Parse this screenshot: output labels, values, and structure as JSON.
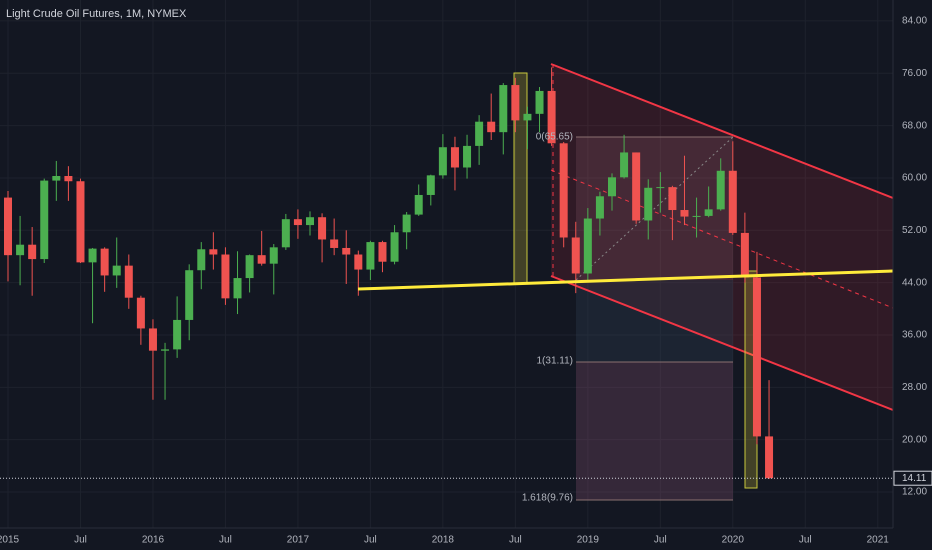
{
  "chart_data": {
    "type": "candlestick",
    "title": "Light Crude Oil Futures, 1M, NYMEX",
    "up_color": "#4caf50",
    "down_color": "#ef5350",
    "grid": true,
    "x": [
      "2015-01",
      "2015-02",
      "2015-03",
      "2015-04",
      "2015-05",
      "2015-06",
      "2015-07",
      "2015-08",
      "2015-09",
      "2015-10",
      "2015-11",
      "2015-12",
      "2016-01",
      "2016-02",
      "2016-03",
      "2016-04",
      "2016-05",
      "2016-06",
      "2016-07",
      "2016-08",
      "2016-09",
      "2016-10",
      "2016-11",
      "2016-12",
      "2017-01",
      "2017-02",
      "2017-03",
      "2017-04",
      "2017-05",
      "2017-06",
      "2017-07",
      "2017-08",
      "2017-09",
      "2017-10",
      "2017-11",
      "2017-12",
      "2018-01",
      "2018-02",
      "2018-03",
      "2018-04",
      "2018-05",
      "2018-06",
      "2018-07",
      "2018-08",
      "2018-09",
      "2018-10",
      "2018-11",
      "2018-12",
      "2019-01",
      "2019-02",
      "2019-03",
      "2019-04",
      "2019-05",
      "2019-06",
      "2019-07",
      "2019-08",
      "2019-09",
      "2019-10",
      "2019-11",
      "2019-12",
      "2020-01",
      "2020-02",
      "2020-03",
      "2020-04"
    ],
    "open": [
      57.0,
      48.2,
      49.8,
      47.6,
      59.6,
      60.3,
      59.5,
      47.1,
      49.2,
      45.1,
      46.6,
      41.7,
      37.0,
      33.6,
      33.8,
      38.3,
      45.9,
      49.1,
      48.3,
      41.6,
      44.7,
      48.2,
      46.9,
      49.4,
      53.7,
      52.8,
      54.0,
      50.6,
      49.3,
      48.3,
      46.0,
      50.2,
      47.2,
      51.7,
      54.4,
      57.4,
      60.4,
      64.7,
      61.6,
      64.9,
      68.6,
      67.0,
      74.2,
      68.8,
      69.8,
      73.3,
      65.3,
      50.9,
      45.4,
      53.8,
      57.2,
      60.1,
      63.9,
      53.5,
      58.5,
      58.6,
      55.1,
      54.1,
      54.2,
      55.2,
      61.1,
      51.6,
      44.8,
      20.5
    ],
    "high": [
      58.0,
      54.2,
      52.5,
      59.9,
      62.6,
      61.8,
      59.9,
      49.3,
      49.4,
      50.9,
      48.3,
      42.0,
      38.4,
      34.8,
      41.9,
      46.8,
      50.2,
      51.7,
      49.4,
      48.8,
      48.3,
      51.9,
      49.9,
      54.5,
      55.2,
      54.9,
      54.6,
      53.8,
      52.0,
      48.9,
      50.4,
      50.4,
      52.8,
      54.8,
      59.0,
      60.5,
      66.7,
      66.3,
      66.6,
      69.6,
      72.9,
      74.5,
      75.3,
      70.9,
      73.9,
      76.9,
      65.5,
      53.3,
      55.4,
      57.9,
      60.7,
      66.6,
      63.9,
      59.8,
      60.9,
      58.8,
      63.4,
      57.0,
      58.7,
      63.0,
      65.6,
      54.7,
      48.7,
      29.1
    ],
    "low": [
      44.2,
      43.6,
      42.0,
      47.0,
      56.5,
      56.5,
      47.0,
      37.8,
      42.6,
      43.2,
      40.0,
      34.5,
      26.1,
      26.1,
      32.5,
      35.2,
      43.0,
      46.0,
      40.6,
      39.2,
      42.5,
      46.6,
      42.2,
      49.0,
      50.7,
      51.2,
      47.1,
      48.2,
      43.8,
      42.0,
      44.4,
      45.6,
      46.8,
      49.1,
      54.2,
      55.8,
      59.9,
      58.1,
      59.9,
      62.0,
      65.8,
      63.6,
      67.0,
      64.4,
      67.0,
      64.9,
      49.4,
      42.4,
      44.4,
      51.2,
      55.0,
      59.9,
      53.0,
      50.6,
      54.7,
      50.5,
      52.8,
      50.9,
      54.0,
      55.0,
      51.3,
      44.0,
      19.3,
      14.0
    ],
    "close": [
      48.2,
      49.8,
      47.6,
      59.6,
      60.3,
      59.5,
      47.1,
      49.2,
      45.1,
      46.6,
      41.7,
      37.0,
      33.6,
      33.8,
      38.3,
      45.9,
      49.1,
      48.3,
      41.6,
      44.7,
      48.2,
      46.9,
      49.4,
      53.7,
      52.8,
      54.0,
      50.6,
      49.3,
      48.3,
      46.0,
      50.2,
      47.2,
      51.7,
      54.4,
      57.4,
      60.4,
      64.7,
      61.6,
      64.9,
      68.6,
      67.0,
      74.2,
      68.8,
      69.8,
      73.3,
      65.3,
      50.9,
      45.4,
      53.8,
      57.2,
      60.1,
      63.9,
      53.5,
      58.5,
      58.6,
      55.1,
      54.1,
      54.2,
      55.2,
      61.1,
      51.6,
      44.8,
      20.5,
      14.11
    ],
    "last_price": 14.11,
    "ylim": [
      6.5,
      87.2
    ],
    "yticks": [
      {
        "value": 84,
        "label": "84.00"
      },
      {
        "value": 76,
        "label": "76.00"
      },
      {
        "value": 68,
        "label": "68.00"
      },
      {
        "value": 60,
        "label": "60.00"
      },
      {
        "value": 52,
        "label": "52.00"
      },
      {
        "value": 44,
        "label": "44.00"
      },
      {
        "value": 36,
        "label": "36.00"
      },
      {
        "value": 28,
        "label": "28.00"
      },
      {
        "value": 20,
        "label": "20.00"
      },
      {
        "value": 12,
        "label": "12.00"
      }
    ],
    "xticks": [
      {
        "value": "2015-01",
        "label": "2015"
      },
      {
        "value": "2015-07",
        "label": "Jul"
      },
      {
        "value": "2016-01",
        "label": "2016"
      },
      {
        "value": "2016-07",
        "label": "Jul"
      },
      {
        "value": "2017-01",
        "label": "2017"
      },
      {
        "value": "2017-07",
        "label": "Jul"
      },
      {
        "value": "2018-01",
        "label": "2018"
      },
      {
        "value": "2018-07",
        "label": "Jul"
      },
      {
        "value": "2019-01",
        "label": "2019"
      },
      {
        "value": "2019-07",
        "label": "Jul"
      },
      {
        "value": "2020-01",
        "label": "2020"
      },
      {
        "value": "2020-07",
        "label": "Jul"
      },
      {
        "value": "2021-01",
        "label": "2021"
      }
    ],
    "annotations": [
      "0(65.65)",
      "1(31.11)",
      "1.618(9.76)"
    ]
  }
}
